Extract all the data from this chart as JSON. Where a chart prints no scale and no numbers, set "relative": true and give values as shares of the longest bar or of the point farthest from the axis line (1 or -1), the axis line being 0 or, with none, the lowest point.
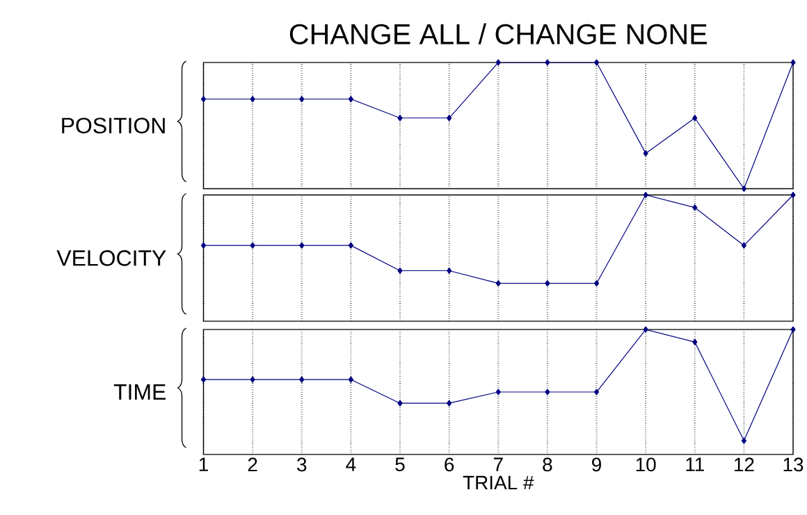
{
  "chart_data": [
    {
      "type": "line",
      "title": "CHANGE ALL / CHANGE NONE",
      "ylabel": "POSITION",
      "relative": true,
      "categories": [
        null,
        null,
        null,
        null,
        null,
        null,
        null,
        null,
        null,
        null,
        null,
        null,
        null
      ],
      "tick_labels": false,
      "grid": "x",
      "marker": "diamond",
      "line_style": "solid",
      "color": "#000080",
      "values": [
        0.71,
        0.71,
        0.71,
        0.71,
        0.56,
        0.56,
        1,
        1,
        1,
        0.28,
        0.56,
        0,
        1
      ]
    },
    {
      "type": "line",
      "ylabel": "VELOCITY",
      "relative": true,
      "categories": [
        null,
        null,
        null,
        null,
        null,
        null,
        null,
        null,
        null,
        null,
        null,
        null,
        null
      ],
      "tick_labels": false,
      "grid": "x",
      "marker": "diamond",
      "line_style": "solid",
      "color": "#000080",
      "values": [
        0.6,
        0.6,
        0.6,
        0.6,
        0.4,
        0.4,
        0.3,
        0.3,
        0.3,
        1,
        0.9,
        0.6,
        1
      ]
    },
    {
      "type": "line",
      "ylabel": "TIME",
      "xlabel": "TRIAL #",
      "relative": true,
      "categories": [
        "1",
        "2",
        "3",
        "4",
        "5",
        "6",
        "7",
        "8",
        "9",
        "10",
        "11",
        "12",
        "13"
      ],
      "tick_labels": "x",
      "grid": "x",
      "marker": "diamond",
      "line_style": "solid",
      "color": "#000080",
      "values": [
        0.6,
        0.6,
        0.6,
        0.6,
        0.41,
        0.41,
        0.5,
        0.5,
        0.5,
        1,
        0.9,
        0.11,
        1
      ]
    }
  ]
}
